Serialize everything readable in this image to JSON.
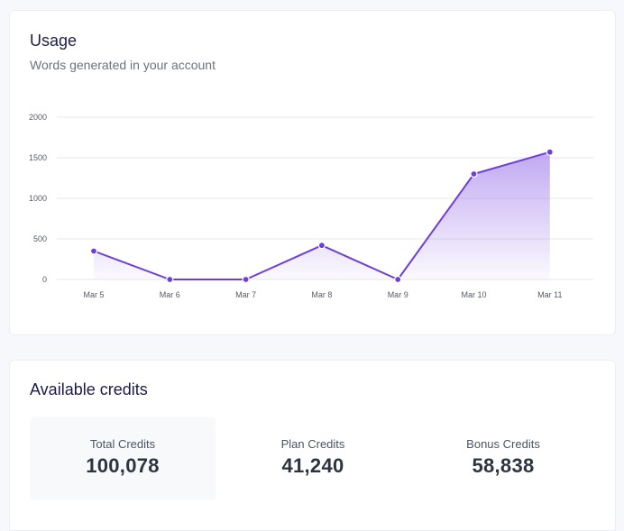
{
  "usage": {
    "title": "Usage",
    "subtitle": "Words generated in your account"
  },
  "chart_data": {
    "type": "area",
    "categories": [
      "Mar 5",
      "Mar 6",
      "Mar 7",
      "Mar 8",
      "Mar 9",
      "Mar 10",
      "Mar 11"
    ],
    "series": [
      {
        "values": [
          350,
          0,
          0,
          420,
          0,
          1300,
          1570
        ]
      }
    ],
    "yticks": [
      0,
      500,
      1000,
      1500,
      2000
    ],
    "ylim": [
      0,
      2000
    ],
    "grid": true,
    "legend": "none",
    "title": "",
    "xlabel": "",
    "ylabel": "",
    "colors": {
      "line": "#6d3fd6",
      "fill": "#9f7aea",
      "grid": "#e5e7eb"
    }
  },
  "credits": {
    "title": "Available credits",
    "stats": [
      {
        "label": "Total Credits",
        "value": "100,078"
      },
      {
        "label": "Plan Credits",
        "value": "41,240"
      },
      {
        "label": "Bonus Credits",
        "value": "58,838"
      }
    ]
  }
}
